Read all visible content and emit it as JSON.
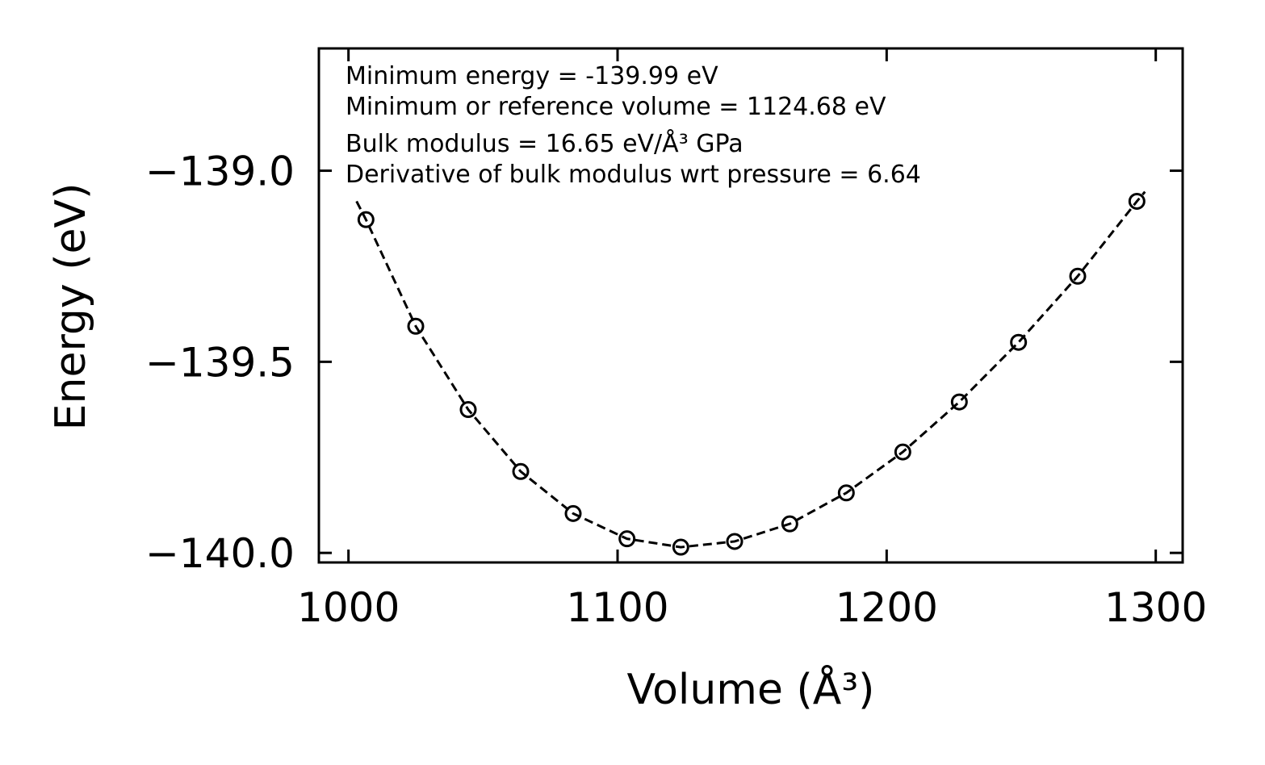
{
  "chart_data": {
    "type": "scatter",
    "title": "",
    "xlabel": "Volume (Å³)",
    "ylabel": "Energy (eV)",
    "xlim": [
      989,
      1310
    ],
    "ylim": [
      -140.025,
      -138.68
    ],
    "x_ticks": [
      1000,
      1100,
      1200,
      1300
    ],
    "x_tick_labels": [
      "1000",
      "1100",
      "1200",
      "1300"
    ],
    "y_ticks": [
      -140.0,
      -139.5,
      -139.0
    ],
    "y_tick_labels": [
      "−140.0",
      "−139.5",
      "−139.0"
    ],
    "grid": false,
    "annotations": [
      "Minimum energy = -139.99 eV",
      "Minimum or reference volume = 1124.68 eV",
      "Bulk modulus = 16.65 eV/Å³ GPa",
      "Derivative of bulk modulus wrt pressure = 6.64"
    ],
    "series": [
      {
        "name": "data",
        "marker": "open-circle",
        "x": [
          1006.5,
          1025,
          1044.5,
          1064,
          1083.5,
          1103.5,
          1123.5,
          1143.5,
          1164,
          1185,
          1206,
          1227,
          1249,
          1271,
          1293
        ],
        "y": [
          -139.128,
          -139.407,
          -139.625,
          -139.787,
          -139.897,
          -139.963,
          -139.985,
          -139.97,
          -139.924,
          -139.843,
          -139.736,
          -139.605,
          -139.449,
          -139.276,
          -139.08
        ]
      },
      {
        "name": "fit",
        "style": "dashed-line",
        "x": [
          1003,
          1006.5,
          1025,
          1044.5,
          1064,
          1083.5,
          1103.5,
          1123.5,
          1143.5,
          1164,
          1185,
          1206,
          1227,
          1249,
          1271,
          1293,
          1296
        ],
        "y": [
          -139.08,
          -139.128,
          -139.407,
          -139.625,
          -139.787,
          -139.897,
          -139.963,
          -139.985,
          -139.97,
          -139.924,
          -139.843,
          -139.736,
          -139.605,
          -139.449,
          -139.276,
          -139.08,
          -139.055
        ]
      }
    ]
  }
}
